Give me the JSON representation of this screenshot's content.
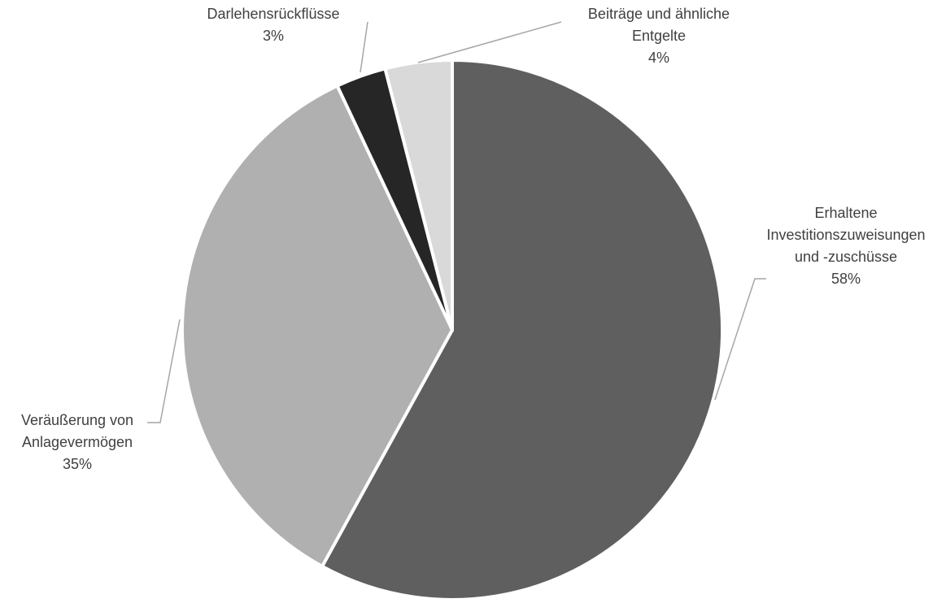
{
  "chart_data": {
    "type": "pie",
    "title": "",
    "legend": "none",
    "start": "top, clockwise",
    "slices": [
      {
        "label_lines": [
          "Erhaltene",
          "Investitionszuweisungen",
          "und -zuschüsse"
        ],
        "value": 58,
        "value_label": "58%",
        "color": "#5f5f5f"
      },
      {
        "label_lines": [
          "Veräußerung von",
          "Anlagevermögen"
        ],
        "value": 35,
        "value_label": "35%",
        "color": "#b0b0b0"
      },
      {
        "label_lines": [
          "Darlehensrückflüsse"
        ],
        "value": 3,
        "value_label": "3%",
        "color": "#262626"
      },
      {
        "label_lines": [
          "Beiträge und ähnliche",
          "Entgelte"
        ],
        "value": 4,
        "value_label": "4%",
        "color": "#d9d9d9"
      }
    ],
    "leader_line_color": "#a6a6a6",
    "slice_border_color": "#ffffff"
  }
}
